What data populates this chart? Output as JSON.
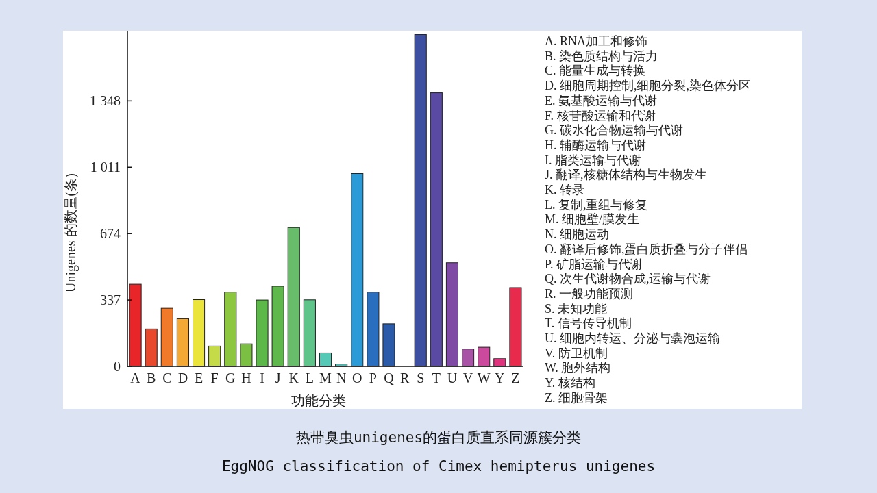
{
  "chart_data": {
    "type": "bar",
    "title": "热带臭虫unigenes的蛋白质直系同源簇分类",
    "subtitle": "EggNOG classification of Cimex hemipterus unigenes",
    "xlabel": "功能分类",
    "ylabel": "Unigenes 的数量(条)",
    "categories": [
      "A",
      "B",
      "C",
      "D",
      "E",
      "F",
      "G",
      "H",
      "I",
      "J",
      "K",
      "L",
      "M",
      "N",
      "O",
      "P",
      "Q",
      "R",
      "S",
      "T",
      "U",
      "V",
      "W",
      "Y",
      "Z"
    ],
    "values": [
      417,
      190,
      295,
      242,
      339,
      103,
      377,
      114,
      337,
      407,
      705,
      338,
      68,
      12,
      979,
      377,
      216,
      0,
      1685,
      1389,
      526,
      88,
      97,
      39,
      400
    ],
    "colors": [
      "#e8262a",
      "#e8482b",
      "#f07a2a",
      "#f4a934",
      "#ebe43a",
      "#c5dc48",
      "#8dc63f",
      "#7bbf43",
      "#5cb848",
      "#5fb84c",
      "#68bd6a",
      "#5ec48a",
      "#55c9b5",
      "#4fb8b0",
      "#2b9bd8",
      "#2a6fbf",
      "#2a5aa8",
      "#3b4fa0",
      "#3d4fa0",
      "#5b4aa3",
      "#7e4aa3",
      "#a853a5",
      "#cc4a9e",
      "#e0337d",
      "#e82a4c"
    ],
    "ylim": [
      0,
      1704
    ],
    "yticks": [
      0,
      337,
      674,
      {
        "value": 1011,
        "label": "1 011"
      },
      {
        "value": 1348,
        "label": "1 348"
      }
    ],
    "annotations": [
      "A. RNA加工和修饰",
      "B. 染色质结构与活力",
      "C. 能量生成与转换",
      "D. 细胞周期控制,细胞分裂,染色体分区",
      "E. 氨基酸运输与代谢",
      "F. 核苷酸运输和代谢",
      "G. 碳水化合物运输与代谢",
      "H. 辅酶运输与代谢",
      "I. 脂类运输与代谢",
      "J. 翻译,核糖体结构与生物发生",
      "K. 转录",
      "L. 复制,重组与修复",
      "M. 细胞壁/膜发生",
      "N. 细胞运动",
      "O. 翻译后修饰,蛋白质折叠与分子伴侣",
      "P. 矿脂运输与代谢",
      "Q. 次生代谢物合成,运输与代谢",
      "R. 一般功能预测",
      "S. 未知功能",
      "T. 信号传导机制",
      "U. 细胞内转运、分泌与囊泡运输",
      "V. 防卫机制",
      "W. 胞外结构",
      "Y. 核结构",
      "Z. 细胞骨架"
    ]
  }
}
